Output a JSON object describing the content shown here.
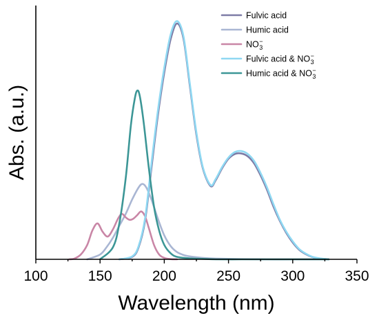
{
  "chart_data": {
    "type": "line",
    "xlabel": "Wavelength (nm)",
    "ylabel": "Abs. (a.u.)",
    "xlim": [
      100,
      350
    ],
    "ylim": [
      0,
      1.06
    ],
    "x_ticks": [
      100,
      150,
      200,
      250,
      300,
      350
    ],
    "x_tick_labels": [
      "100",
      "150",
      "200",
      "250",
      "300",
      "350"
    ],
    "y_ticks_labeled": false,
    "grid": false,
    "legend_position": "top-right",
    "series": [
      {
        "name": "Fulvic acid",
        "color": "#7d7ba6",
        "x": [
          165,
          175,
          180,
          185,
          190,
          195,
          200,
          205,
          210,
          215,
          220,
          225,
          230,
          236,
          240,
          245,
          250,
          255,
          260,
          265,
          270,
          275,
          280,
          285,
          290,
          295,
          300,
          305,
          310,
          315,
          320,
          328
        ],
        "values": [
          0.0,
          0.01,
          0.05,
          0.16,
          0.38,
          0.6,
          0.78,
          0.92,
          0.985,
          0.92,
          0.72,
          0.52,
          0.38,
          0.306,
          0.33,
          0.38,
          0.42,
          0.44,
          0.442,
          0.43,
          0.4,
          0.35,
          0.29,
          0.22,
          0.16,
          0.11,
          0.07,
          0.04,
          0.022,
          0.01,
          0.004,
          0.0
        ]
      },
      {
        "name": "Humic acid",
        "color": "#a9b6d3",
        "x": [
          140,
          150,
          155,
          160,
          165,
          170,
          175,
          180,
          183,
          186,
          190,
          195,
          200,
          205,
          210,
          215,
          220,
          230,
          240,
          260,
          280,
          300,
          320,
          328
        ],
        "values": [
          0.0,
          0.02,
          0.05,
          0.09,
          0.14,
          0.19,
          0.25,
          0.3,
          0.315,
          0.3,
          0.25,
          0.17,
          0.1,
          0.055,
          0.03,
          0.018,
          0.012,
          0.006,
          0.003,
          0.001,
          0.0,
          0.0,
          0.0,
          0.0
        ]
      },
      {
        "name": "NO3-",
        "color": "#c986a6",
        "x": [
          126,
          130,
          135,
          140,
          144,
          148,
          152,
          156,
          160,
          164,
          167,
          170,
          173,
          176,
          179,
          182,
          185,
          188,
          192,
          196,
          200,
          205,
          210
        ],
        "values": [
          0.0,
          0.003,
          0.02,
          0.06,
          0.12,
          0.15,
          0.115,
          0.095,
          0.125,
          0.17,
          0.19,
          0.175,
          0.165,
          0.17,
          0.185,
          0.2,
          0.18,
          0.13,
          0.06,
          0.02,
          0.006,
          0.001,
          0.0
        ]
      },
      {
        "name": "Fulvic acid & NO3-",
        "color": "#8fd8f2",
        "x": [
          165,
          175,
          180,
          185,
          190,
          195,
          200,
          205,
          210,
          215,
          220,
          225,
          230,
          236,
          240,
          245,
          250,
          255,
          260,
          265,
          270,
          275,
          280,
          285,
          290,
          295,
          300,
          305,
          310,
          315,
          320,
          328
        ],
        "values": [
          0.0,
          0.012,
          0.055,
          0.17,
          0.4,
          0.62,
          0.8,
          0.94,
          0.995,
          0.93,
          0.73,
          0.53,
          0.385,
          0.31,
          0.335,
          0.385,
          0.425,
          0.448,
          0.452,
          0.44,
          0.41,
          0.36,
          0.3,
          0.23,
          0.165,
          0.115,
          0.075,
          0.043,
          0.024,
          0.011,
          0.005,
          0.0
        ]
      },
      {
        "name": "Humic acid & NO3-",
        "color": "#3c9696",
        "x": [
          150,
          160,
          165,
          170,
          174,
          177,
          179,
          181,
          184,
          188,
          192,
          196,
          200,
          205,
          210,
          220,
          230,
          240,
          260,
          280,
          300,
          328
        ],
        "values": [
          0.0,
          0.05,
          0.15,
          0.34,
          0.56,
          0.67,
          0.705,
          0.68,
          0.57,
          0.38,
          0.22,
          0.12,
          0.06,
          0.025,
          0.01,
          0.004,
          0.002,
          0.0,
          0.0,
          0.0,
          0.0,
          0.0
        ]
      }
    ],
    "legend": [
      {
        "base": "Fulvic acid",
        "no3": false,
        "color": "#7d7ba6"
      },
      {
        "base": "Humic acid",
        "no3": false,
        "color": "#a9b6d3"
      },
      {
        "base": "NO",
        "no3": true,
        "no3_only": true,
        "color": "#c986a6"
      },
      {
        "base": "Fulvic acid & NO",
        "no3": true,
        "color": "#8fd8f2"
      },
      {
        "base": "Humic acid & NO",
        "no3": true,
        "color": "#3c9696"
      }
    ],
    "no3_subscript": "3",
    "no3_superscript": "−"
  }
}
